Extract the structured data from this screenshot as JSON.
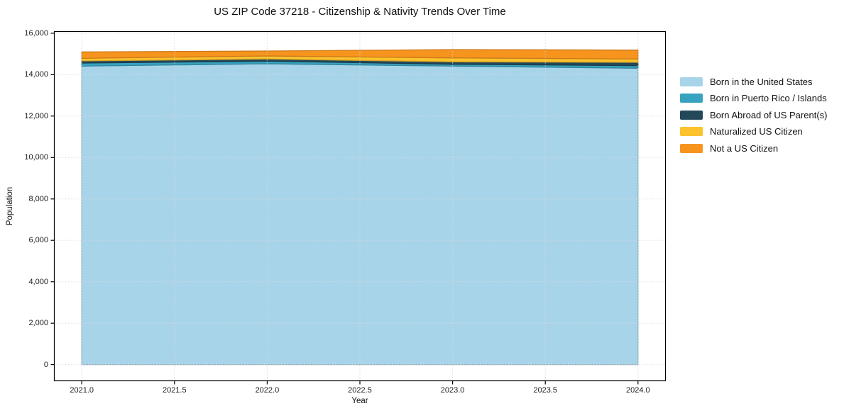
{
  "chart_data": {
    "type": "area",
    "stacked": true,
    "title": "US ZIP Code 37218 - Citizenship & Nativity Trends Over Time",
    "xlabel": "Year",
    "ylabel": "Population",
    "x": [
      2021,
      2022,
      2023,
      2024
    ],
    "series": [
      {
        "name": "Born in the United States",
        "color": "#A8D4EA",
        "values": [
          14414,
          14527,
          14414,
          14312
        ]
      },
      {
        "name": "Born in Puerto Rico / Islands",
        "color": "#38A3C0",
        "values": [
          147,
          126,
          89,
          123
        ]
      },
      {
        "name": "Born Abroad of US Parent(s)",
        "color": "#23485A",
        "values": [
          102,
          102,
          116,
          160
        ]
      },
      {
        "name": "Naturalized US Citizen",
        "color": "#FCC22D",
        "values": [
          126,
          147,
          191,
          160
        ]
      },
      {
        "name": "Not a US Citizen",
        "color": "#F7941E",
        "values": [
          307,
          239,
          399,
          430
        ]
      }
    ],
    "xlim": [
      2020.85,
      2024.15
    ],
    "ylim": [
      -800,
      16100
    ],
    "xticks": {
      "values": [
        2021.0,
        2021.5,
        2022.0,
        2022.5,
        2023.0,
        2023.5,
        2024.0
      ],
      "labels": [
        "2021.0",
        "2021.5",
        "2022.0",
        "2022.5",
        "2023.0",
        "2023.5",
        "2024.0"
      ]
    },
    "yticks": {
      "values": [
        0,
        2000,
        4000,
        6000,
        8000,
        10000,
        12000,
        14000,
        16000
      ],
      "labels": [
        "0",
        "2,000",
        "4,000",
        "6,000",
        "8,000",
        "10,000",
        "12,000",
        "14,000",
        "16,000"
      ]
    },
    "grid": true,
    "legend_position": "right-of-plot",
    "colors": {
      "spine": "#000000",
      "grid": "#d8d8d8",
      "background": "#ffffff"
    }
  }
}
